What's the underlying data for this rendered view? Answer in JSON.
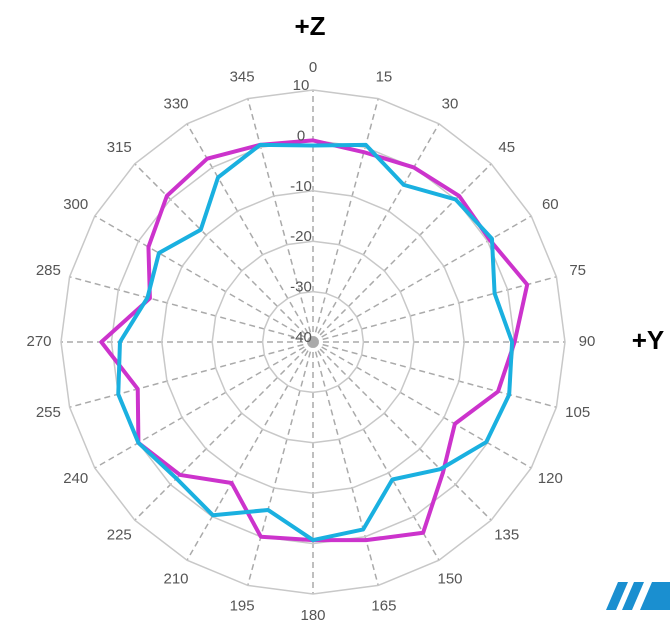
{
  "chart_data": {
    "type": "radar",
    "annotations": [
      "+Z",
      "+Y"
    ],
    "categories": [
      "0",
      "15",
      "30",
      "45",
      "60",
      "75",
      "90",
      "105",
      "120",
      "135",
      "150",
      "165",
      "180",
      "195",
      "210",
      "225",
      "240",
      "255",
      "270",
      "285",
      "300",
      "315",
      "330",
      "345"
    ],
    "series": [
      {
        "color": "#cc33cc",
        "values": [
          0,
          -1,
          0,
          1,
          0.5,
          4,
          0,
          -2,
          -7.5,
          -3.5,
          3.7,
          0.7,
          -0.7,
          0,
          -7.7,
          -2.7,
          0,
          -4,
          2,
          -6.5,
          -2.3,
          1,
          2,
          0.5
        ]
      },
      {
        "color": "#1ab0e0",
        "values": [
          -1,
          0.5,
          -4,
          0,
          1,
          -2.7,
          -0.5,
          0.3,
          -0.3,
          -4.3,
          -8.5,
          -1.5,
          -0.7,
          -5.5,
          -0.3,
          -1.7,
          0,
          0,
          -1.7,
          -6,
          -4.7,
          -8.5,
          -2.3,
          0.5
        ]
      }
    ],
    "ylim": [
      -40,
      10
    ],
    "yticks": [
      -40,
      -30,
      -20,
      -10,
      0,
      10
    ],
    "grid": true
  }
}
